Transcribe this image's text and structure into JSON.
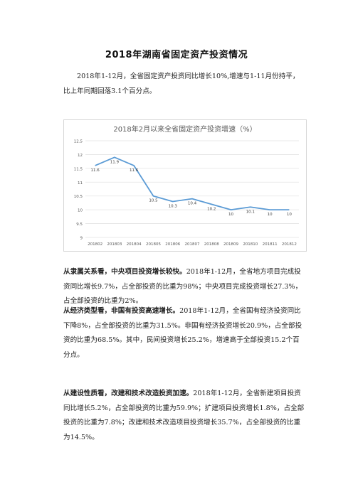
{
  "doc": {
    "title": "2018年湖南省固定资产投资情况",
    "intro": "2018年1-12月，全省固定资产投资同比增长10%,增速与1-11月份持平，比上年同期回落3.1个百分点。",
    "sections": [
      {
        "lead": "从隶属关系看，中央项目投资增长较快。",
        "text": "2018年1-12月，全省地方项目完成投资同比增长9.7%，占全部投资的比重为98%；中央项目完成投资增长27.3%，占全部投资的比重为2%。"
      },
      {
        "lead": "从经济类型看，非国有投资高速增长。",
        "text": "2018年1-12月，全省国有经济投资同比下降8%，占全部投资的比重为31.5%。非国有经济投资增长20.9%，占全部投资的比重为68.5%。其中，民间投资增长25.2%，增速高于全部投资15.2个百分点。"
      },
      {
        "lead": "从建设性质看，改建和技术改造投资加速。",
        "text": "2018年1-12月，全省新建项目投资同比增长5.2%，占全部投资的比重为59.9%；扩建项目投资增长1.8%，占全部投资的比重为7.8%；改建和技术改造项目投资增长35.7%，占全部投资的比重为14.5%。"
      }
    ]
  },
  "chart_data": {
    "type": "line",
    "title": "2018年2月以来全省固定资产投资增速（%）",
    "categories": [
      "201802",
      "201803",
      "201804",
      "201805",
      "201806",
      "201807",
      "201808",
      "201809",
      "201810",
      "201811",
      "201812"
    ],
    "values": [
      11.6,
      11.9,
      11.6,
      10.5,
      10.3,
      10.4,
      10.2,
      10,
      10.1,
      10,
      10
    ],
    "data_labels": [
      "11.6",
      "11.9",
      "11.6",
      "10.5",
      "10.3",
      "10.4",
      "10.2",
      "10",
      "10.1",
      "10",
      "10"
    ],
    "ylim": [
      9,
      12.5
    ],
    "yticks": [
      9,
      9.5,
      10,
      10.5,
      11,
      11.5,
      12,
      12.5
    ],
    "ytick_labels": [
      "9",
      "9.5",
      "10",
      "10.5",
      "11",
      "11.5",
      "12",
      "12.5"
    ],
    "grid": true,
    "line_color": "#5b9bd5",
    "grid_color": "#e3e3e3",
    "text_color": "#595959"
  }
}
